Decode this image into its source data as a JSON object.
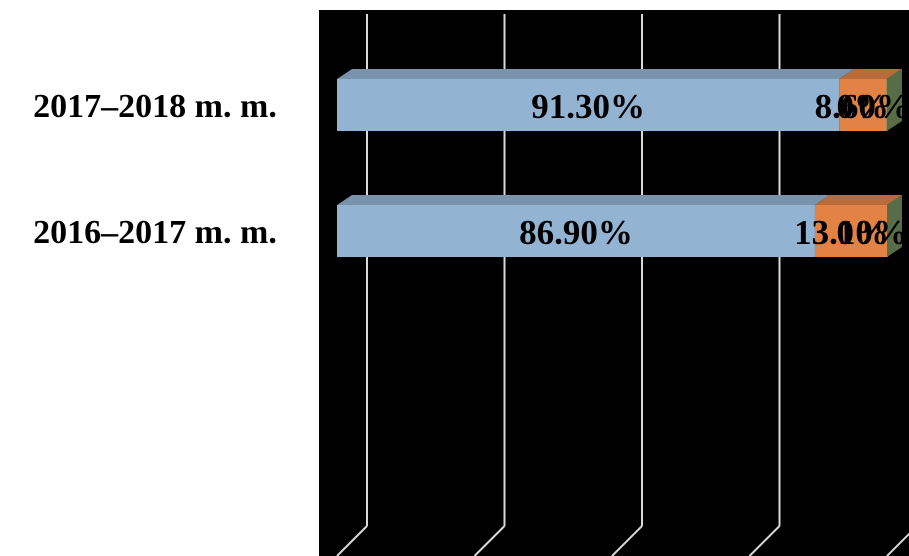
{
  "chart_data": {
    "type": "bar",
    "orientation": "horizontal",
    "stacked": true,
    "percent_stacked": true,
    "three_d": true,
    "categories": [
      "2017–2018 m. m.",
      "2016–2017 m. m."
    ],
    "series": [
      {
        "values": [
          91.3,
          86.9
        ],
        "labels": [
          "91.30%",
          "86.90%"
        ],
        "color": "#93b3d3"
      },
      {
        "values": [
          8.6,
          13.1
        ],
        "labels": [
          "8.60%",
          "13.10%"
        ],
        "color": "#e28245"
      },
      {
        "values": [
          0.1,
          0.1
        ],
        "labels": [
          "0%",
          "0%"
        ],
        "color": "#7e9a65"
      }
    ],
    "xlim": [
      0,
      100
    ],
    "plot_background": "#000000",
    "gridline_color": "#d9d9d9",
    "grid": true,
    "legend": "none"
  }
}
